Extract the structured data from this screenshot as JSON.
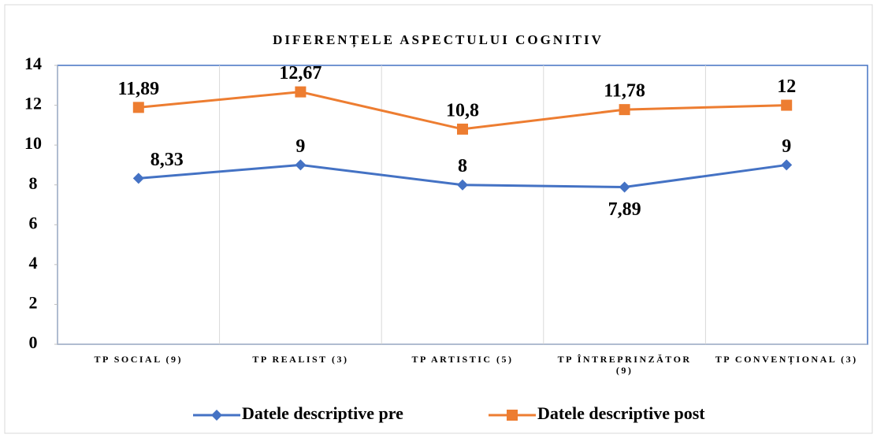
{
  "chart_data": {
    "type": "line",
    "title": "DIFERENȚELE ASPECTULUI COGNITIV",
    "categories": [
      "TP SOCIAL (9)",
      "TP REALIST (3)",
      "TP ARTISTIC (5)",
      "TP ÎNTREPRINZĂTOR (9)",
      "TP CONVENȚIONAL (3)"
    ],
    "series": [
      {
        "name": "Datele descriptive pre",
        "color": "#4472c4",
        "marker": "diamond",
        "values": [
          8.33,
          9,
          8,
          7.89,
          9
        ],
        "value_labels": [
          "8,33",
          "9",
          "8",
          "7,89",
          "9"
        ]
      },
      {
        "name": "Datele descriptive post",
        "color": "#ed7d31",
        "marker": "square",
        "values": [
          11.89,
          12.67,
          10.8,
          11.78,
          12
        ],
        "value_labels": [
          "11,89",
          "12,67",
          "10,8",
          "11,78",
          "12"
        ]
      }
    ],
    "ylim": [
      0,
      14
    ],
    "yticks": [
      0,
      2,
      4,
      6,
      8,
      10,
      12,
      14
    ],
    "legend": "bottom"
  }
}
